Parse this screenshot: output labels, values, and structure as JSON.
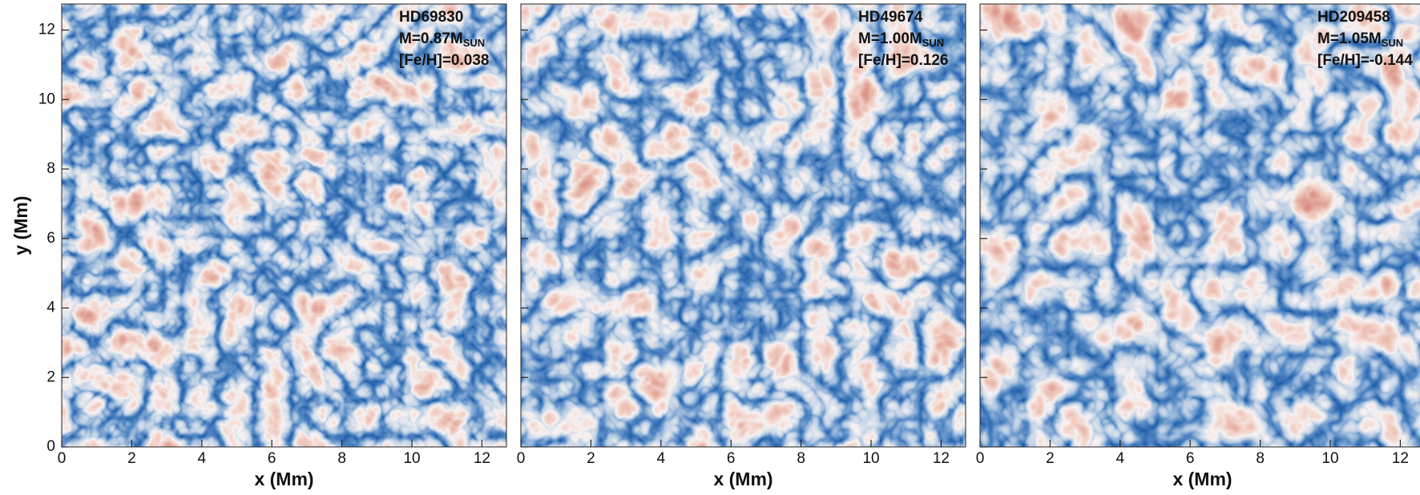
{
  "chart_data": [
    {
      "type": "heatmap",
      "star": "HD69830",
      "mass": "M=0.87M",
      "mass_sub": "SUN",
      "metallicity": "[Fe/H]=0.038",
      "x_label": "x (Mm)",
      "y_label": "y (Mm)",
      "xlim": [
        0,
        12.7
      ],
      "ylim": [
        0,
        12.75
      ],
      "xticks": [
        0,
        2,
        4,
        6,
        8,
        10,
        12
      ],
      "yticks": [
        0,
        2,
        4,
        6,
        8,
        10,
        12
      ],
      "ytick_labels": true
    },
    {
      "type": "heatmap",
      "star": "HD49674",
      "mass": "M=1.00M",
      "mass_sub": "SUN",
      "metallicity": "[Fe/H]=0.126",
      "x_label": "x (Mm)",
      "xlim": [
        0,
        12.7
      ],
      "ylim": [
        0,
        12.75
      ],
      "xticks": [
        0,
        2,
        4,
        6,
        8,
        10,
        12
      ],
      "yticks": [
        0,
        2,
        4,
        6,
        8,
        10,
        12
      ],
      "ytick_labels": false
    },
    {
      "type": "heatmap",
      "star": "HD209458",
      "mass": "M=1.05M",
      "mass_sub": "SUN",
      "metallicity": "[Fe/H]=-0.144",
      "x_label": "x (Mm)",
      "xlim": [
        0,
        12.7
      ],
      "ylim": [
        0,
        12.75
      ],
      "xticks": [
        0,
        2,
        4,
        6,
        8,
        10,
        12
      ],
      "yticks": [
        0,
        2,
        4,
        6,
        8,
        10,
        12
      ],
      "ytick_labels": false
    }
  ]
}
